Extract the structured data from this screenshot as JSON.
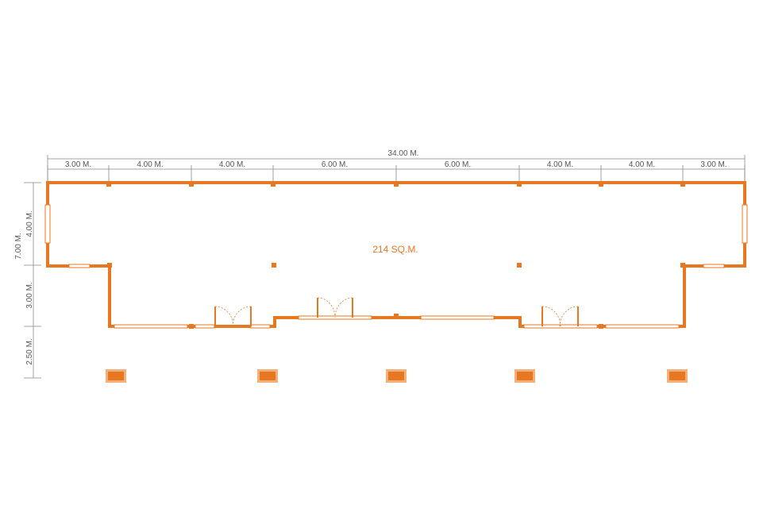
{
  "dimensions": {
    "overall_width": "34.00 M.",
    "widths": [
      "3.00 M.",
      "4.00 M.",
      "4.00 M.",
      "6.00 M.",
      "6.00 M.",
      "4.00 M.",
      "4.00 M.",
      "3.00 M."
    ],
    "overall_depth": "7.00 M.",
    "depths": [
      "4.00 M.",
      "3.00 M.",
      "2.50 M."
    ]
  },
  "area": "214 SQ.M."
}
